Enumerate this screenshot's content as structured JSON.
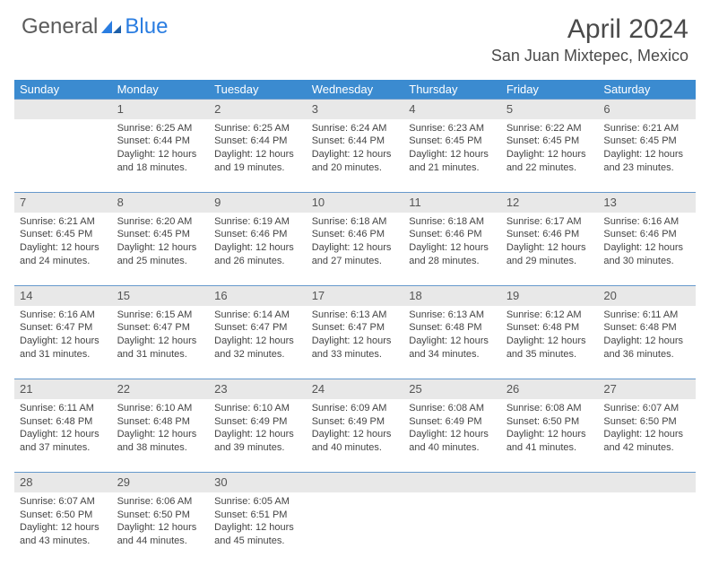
{
  "brand": {
    "part1": "General",
    "part2": "Blue"
  },
  "title": "April 2024",
  "location": "San Juan Mixtepec, Mexico",
  "header_color": "#3b8bd0",
  "daynum_bg": "#e8e8e8",
  "border_color": "#6699cc",
  "weekdays": [
    "Sunday",
    "Monday",
    "Tuesday",
    "Wednesday",
    "Thursday",
    "Friday",
    "Saturday"
  ],
  "weeks": [
    {
      "nums": [
        "",
        "1",
        "2",
        "3",
        "4",
        "5",
        "6"
      ],
      "cells": [
        null,
        {
          "sunrise": "6:25 AM",
          "sunset": "6:44 PM",
          "daylight": "12 hours and 18 minutes."
        },
        {
          "sunrise": "6:25 AM",
          "sunset": "6:44 PM",
          "daylight": "12 hours and 19 minutes."
        },
        {
          "sunrise": "6:24 AM",
          "sunset": "6:44 PM",
          "daylight": "12 hours and 20 minutes."
        },
        {
          "sunrise": "6:23 AM",
          "sunset": "6:45 PM",
          "daylight": "12 hours and 21 minutes."
        },
        {
          "sunrise": "6:22 AM",
          "sunset": "6:45 PM",
          "daylight": "12 hours and 22 minutes."
        },
        {
          "sunrise": "6:21 AM",
          "sunset": "6:45 PM",
          "daylight": "12 hours and 23 minutes."
        }
      ]
    },
    {
      "nums": [
        "7",
        "8",
        "9",
        "10",
        "11",
        "12",
        "13"
      ],
      "cells": [
        {
          "sunrise": "6:21 AM",
          "sunset": "6:45 PM",
          "daylight": "12 hours and 24 minutes."
        },
        {
          "sunrise": "6:20 AM",
          "sunset": "6:45 PM",
          "daylight": "12 hours and 25 minutes."
        },
        {
          "sunrise": "6:19 AM",
          "sunset": "6:46 PM",
          "daylight": "12 hours and 26 minutes."
        },
        {
          "sunrise": "6:18 AM",
          "sunset": "6:46 PM",
          "daylight": "12 hours and 27 minutes."
        },
        {
          "sunrise": "6:18 AM",
          "sunset": "6:46 PM",
          "daylight": "12 hours and 28 minutes."
        },
        {
          "sunrise": "6:17 AM",
          "sunset": "6:46 PM",
          "daylight": "12 hours and 29 minutes."
        },
        {
          "sunrise": "6:16 AM",
          "sunset": "6:46 PM",
          "daylight": "12 hours and 30 minutes."
        }
      ]
    },
    {
      "nums": [
        "14",
        "15",
        "16",
        "17",
        "18",
        "19",
        "20"
      ],
      "cells": [
        {
          "sunrise": "6:16 AM",
          "sunset": "6:47 PM",
          "daylight": "12 hours and 31 minutes."
        },
        {
          "sunrise": "6:15 AM",
          "sunset": "6:47 PM",
          "daylight": "12 hours and 31 minutes."
        },
        {
          "sunrise": "6:14 AM",
          "sunset": "6:47 PM",
          "daylight": "12 hours and 32 minutes."
        },
        {
          "sunrise": "6:13 AM",
          "sunset": "6:47 PM",
          "daylight": "12 hours and 33 minutes."
        },
        {
          "sunrise": "6:13 AM",
          "sunset": "6:48 PM",
          "daylight": "12 hours and 34 minutes."
        },
        {
          "sunrise": "6:12 AM",
          "sunset": "6:48 PM",
          "daylight": "12 hours and 35 minutes."
        },
        {
          "sunrise": "6:11 AM",
          "sunset": "6:48 PM",
          "daylight": "12 hours and 36 minutes."
        }
      ]
    },
    {
      "nums": [
        "21",
        "22",
        "23",
        "24",
        "25",
        "26",
        "27"
      ],
      "cells": [
        {
          "sunrise": "6:11 AM",
          "sunset": "6:48 PM",
          "daylight": "12 hours and 37 minutes."
        },
        {
          "sunrise": "6:10 AM",
          "sunset": "6:48 PM",
          "daylight": "12 hours and 38 minutes."
        },
        {
          "sunrise": "6:10 AM",
          "sunset": "6:49 PM",
          "daylight": "12 hours and 39 minutes."
        },
        {
          "sunrise": "6:09 AM",
          "sunset": "6:49 PM",
          "daylight": "12 hours and 40 minutes."
        },
        {
          "sunrise": "6:08 AM",
          "sunset": "6:49 PM",
          "daylight": "12 hours and 40 minutes."
        },
        {
          "sunrise": "6:08 AM",
          "sunset": "6:50 PM",
          "daylight": "12 hours and 41 minutes."
        },
        {
          "sunrise": "6:07 AM",
          "sunset": "6:50 PM",
          "daylight": "12 hours and 42 minutes."
        }
      ]
    },
    {
      "nums": [
        "28",
        "29",
        "30",
        "",
        "",
        "",
        ""
      ],
      "cells": [
        {
          "sunrise": "6:07 AM",
          "sunset": "6:50 PM",
          "daylight": "12 hours and 43 minutes."
        },
        {
          "sunrise": "6:06 AM",
          "sunset": "6:50 PM",
          "daylight": "12 hours and 44 minutes."
        },
        {
          "sunrise": "6:05 AM",
          "sunset": "6:51 PM",
          "daylight": "12 hours and 45 minutes."
        },
        null,
        null,
        null,
        null
      ]
    }
  ],
  "labels": {
    "sunrise": "Sunrise:",
    "sunset": "Sunset:",
    "daylight": "Daylight:"
  }
}
